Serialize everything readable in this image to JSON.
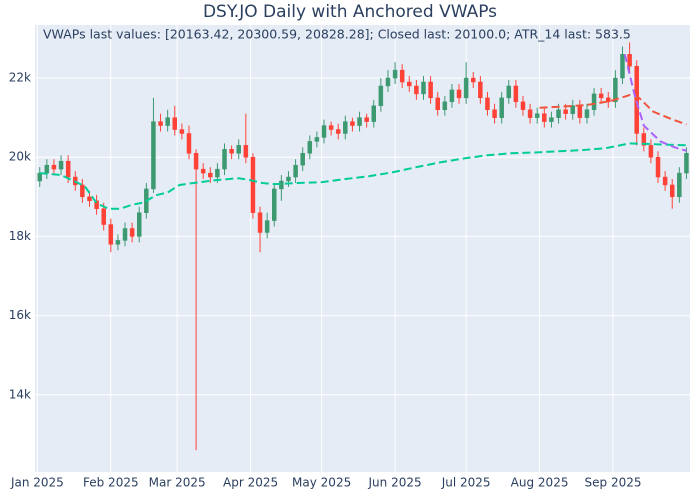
{
  "chart_data": {
    "type": "candlestick",
    "title": "DSY.JO Daily with Anchored VWAPs",
    "annotation": "VWAPs last values: [20163.42, 20300.59, 20828.28]; Closed last: 20100.0; ATR_14 last: 583.5",
    "increasing_color": "#3D9970",
    "decreasing_color": "#FF4136",
    "grid": true,
    "xlim": [
      -1,
      275.5
    ],
    "xticks": [
      {
        "value": 0,
        "label": "Jan 2025"
      },
      {
        "value": 31,
        "label": "Feb 2025"
      },
      {
        "value": 59,
        "label": "Mar 2025"
      },
      {
        "value": 90,
        "label": "Apr 2025"
      },
      {
        "value": 120,
        "label": "May 2025"
      },
      {
        "value": 151,
        "label": "Jun 2025"
      },
      {
        "value": 181,
        "label": "Jul 2025"
      },
      {
        "value": 212,
        "label": "Aug 2025"
      },
      {
        "value": 243,
        "label": "Sep 2025"
      }
    ],
    "ylim": [
      12050,
      23340
    ],
    "yticks": [
      {
        "value": 14000,
        "label": "14k"
      },
      {
        "value": 16000,
        "label": "16k"
      },
      {
        "value": 18000,
        "label": "18k"
      },
      {
        "value": 20000,
        "label": "20k"
      },
      {
        "value": 22000,
        "label": "22k"
      }
    ],
    "x": [
      1,
      4,
      7,
      10,
      13,
      16,
      19,
      22,
      25,
      28,
      31,
      34,
      37,
      40,
      43,
      46,
      49,
      52,
      55,
      58,
      61,
      64,
      67,
      70,
      73,
      76,
      79,
      82,
      85,
      88,
      91,
      94,
      97,
      100,
      103,
      106,
      109,
      112,
      115,
      118,
      121,
      124,
      127,
      130,
      133,
      136,
      139,
      142,
      145,
      148,
      151,
      154,
      157,
      160,
      163,
      166,
      169,
      172,
      175,
      178,
      181,
      184,
      187,
      190,
      193,
      196,
      199,
      202,
      205,
      208,
      211,
      214,
      217,
      220,
      223,
      226,
      229,
      232,
      235,
      238,
      241,
      244,
      247,
      250,
      253,
      256,
      259,
      262,
      265,
      268,
      271,
      274
    ],
    "open": [
      19400,
      19600,
      19800,
      19700,
      19900,
      19500,
      19300,
      19000,
      18900,
      18700,
      18300,
      17800,
      17900,
      18200,
      18000,
      18600,
      19200,
      20900,
      20800,
      21000,
      20700,
      20600,
      20100,
      19700,
      19600,
      19500,
      19700,
      20200,
      20100,
      20300,
      20000,
      18600,
      18100,
      18400,
      19200,
      19400,
      19500,
      19800,
      20100,
      20400,
      20500,
      20800,
      20700,
      20600,
      20900,
      20800,
      21000,
      20900,
      21300,
      21800,
      22000,
      22200,
      21900,
      21800,
      21600,
      21900,
      21500,
      21200,
      21400,
      21700,
      21500,
      22000,
      21900,
      21500,
      21200,
      21000,
      21500,
      21800,
      21400,
      21200,
      21000,
      21100,
      20900,
      21000,
      21200,
      21100,
      21300,
      21000,
      21200,
      21600,
      21500,
      21400,
      22000,
      22600,
      22300,
      20600,
      20300,
      20000,
      19500,
      19300,
      19000,
      19600
    ],
    "high": [
      19750,
      19950,
      19950,
      20050,
      20050,
      19650,
      19450,
      19150,
      19050,
      18850,
      18450,
      18050,
      18350,
      18350,
      18750,
      19350,
      21500,
      21100,
      21200,
      21300,
      20850,
      20800,
      20200,
      19850,
      19750,
      19850,
      20350,
      20300,
      20450,
      21100,
      20100,
      18750,
      18600,
      19350,
      19550,
      19650,
      19950,
      20250,
      20550,
      20650,
      20950,
      20900,
      20850,
      21050,
      21000,
      21150,
      21100,
      21450,
      22000,
      22200,
      22400,
      22350,
      22050,
      21950,
      22050,
      22050,
      21650,
      21550,
      21850,
      21850,
      22400,
      22150,
      22050,
      21650,
      21350,
      21650,
      21950,
      21950,
      21550,
      21350,
      21250,
      21250,
      21150,
      21350,
      21350,
      21450,
      21450,
      21350,
      21750,
      21750,
      21650,
      22200,
      22800,
      22900,
      22450,
      20750,
      20450,
      20150,
      19650,
      19450,
      19750,
      20250
    ],
    "low": [
      19250,
      19450,
      19550,
      19550,
      19350,
      19150,
      18850,
      18750,
      18550,
      18150,
      17600,
      17650,
      17750,
      17850,
      17850,
      18450,
      19100,
      20650,
      20650,
      20550,
      20450,
      19950,
      12600,
      19450,
      19350,
      19350,
      19550,
      19950,
      19950,
      19850,
      18450,
      17600,
      17950,
      18250,
      18900,
      19250,
      19350,
      19650,
      19950,
      20250,
      20350,
      20550,
      20450,
      20450,
      20650,
      20650,
      20750,
      20750,
      21150,
      21650,
      21850,
      21750,
      21650,
      21450,
      21450,
      21350,
      21050,
      21050,
      21250,
      21350,
      21350,
      21750,
      21350,
      21050,
      20850,
      20850,
      21350,
      21250,
      21050,
      20850,
      20850,
      20750,
      20750,
      20850,
      20950,
      20950,
      20850,
      20850,
      21050,
      21350,
      21250,
      21250,
      21850,
      22150,
      20300,
      20150,
      19850,
      19350,
      19150,
      18700,
      18850,
      19450
    ],
    "close": [
      19600,
      19800,
      19700,
      19900,
      19500,
      19300,
      19000,
      18900,
      18700,
      18300,
      17800,
      17900,
      18200,
      18000,
      18600,
      19200,
      20900,
      20800,
      21000,
      20700,
      20600,
      20100,
      19700,
      19600,
      19500,
      19700,
      20200,
      20100,
      20300,
      20000,
      18600,
      18100,
      18400,
      19200,
      19400,
      19500,
      19800,
      20100,
      20400,
      20500,
      20800,
      20700,
      20600,
      20900,
      20800,
      21000,
      20900,
      21300,
      21800,
      22000,
      22200,
      21900,
      21800,
      21600,
      21900,
      21500,
      21200,
      21400,
      21700,
      21500,
      22000,
      21900,
      21500,
      21200,
      21000,
      21500,
      21800,
      21400,
      21200,
      21000,
      21100,
      20900,
      21000,
      21200,
      21100,
      21300,
      21000,
      21200,
      21600,
      21500,
      21400,
      22000,
      22600,
      22300,
      20600,
      20300,
      20000,
      19500,
      19300,
      19000,
      19600,
      20100
    ],
    "series": [
      {
        "color": "#00cc96",
        "dash": true,
        "x": [
          1,
          10,
          20,
          25,
          30,
          35,
          40,
          45,
          50,
          55,
          60,
          66,
          75,
          85,
          90,
          95,
          100,
          110,
          120,
          130,
          140,
          150,
          160,
          170,
          180,
          190,
          200,
          210,
          220,
          230,
          240,
          250,
          260,
          270,
          274
        ],
        "values": [
          19600,
          19550,
          19270,
          18840,
          18700,
          18700,
          18800,
          18860,
          19040,
          19110,
          19300,
          19350,
          19420,
          19470,
          19420,
          19350,
          19320,
          19350,
          19370,
          19450,
          19520,
          19620,
          19750,
          19870,
          19970,
          20050,
          20100,
          20120,
          20150,
          20180,
          20230,
          20350,
          20330,
          20310,
          20300.59
        ]
      },
      {
        "color": "#EF553B",
        "dash": true,
        "x": [
          212,
          222,
          232,
          242,
          250,
          254,
          260,
          267,
          274
        ],
        "values": [
          21250,
          21280,
          21320,
          21420,
          21570,
          21500,
          21150,
          20980,
          20828.28
        ]
      },
      {
        "color": "#AB63FA",
        "dash": true,
        "x": [
          248,
          252,
          256,
          263,
          269,
          274
        ],
        "values": [
          22600,
          21600,
          20800,
          20400,
          20250,
          20163.42
        ]
      }
    ]
  }
}
